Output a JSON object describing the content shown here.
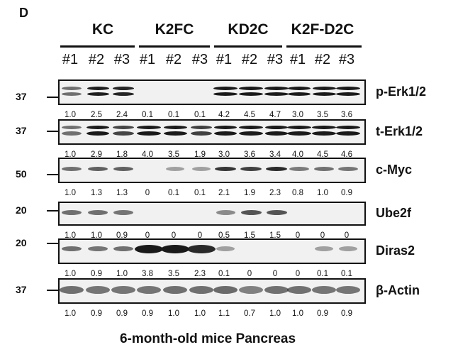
{
  "panel_label": "D",
  "groups": [
    {
      "name": "KC",
      "lanes": [
        "#1",
        "#2",
        "#3"
      ]
    },
    {
      "name": "K2FC",
      "lanes": [
        "#1",
        "#2",
        "#3"
      ]
    },
    {
      "name": "KD2C",
      "lanes": [
        "#1",
        "#2",
        "#3"
      ]
    },
    {
      "name": "K2F-D2C",
      "lanes": [
        "#1",
        "#2",
        "#3"
      ]
    }
  ],
  "blots": [
    {
      "protein": "p-Erk1/2",
      "marker": "37",
      "values": [
        "1.0",
        "2.5",
        "2.4",
        "0.1",
        "0.1",
        "0.1",
        "4.2",
        "4.5",
        "4.7",
        "3.0",
        "3.5",
        "3.6"
      ]
    },
    {
      "protein": "t-Erk1/2",
      "marker": "37",
      "values": [
        "1.0",
        "2.9",
        "1.8",
        "4.0",
        "3.5",
        "1.9",
        "3.0",
        "3.6",
        "3.4",
        "4.0",
        "4.5",
        "4.6"
      ]
    },
    {
      "protein": "c-Myc",
      "marker": "50",
      "values": [
        "1.0",
        "1.3",
        "1.3",
        "0",
        "0.1",
        "0.1",
        "2.1",
        "1.9",
        "2.3",
        "0.8",
        "1.0",
        "0.9"
      ]
    },
    {
      "protein": "Ube2f",
      "marker": "20",
      "values": [
        "1.0",
        "1.0",
        "0.9",
        "0",
        "0",
        "0",
        "0.5",
        "1.5",
        "1.5",
        "0",
        "0",
        "0"
      ]
    },
    {
      "protein": "Diras2",
      "marker": "20",
      "values": [
        "1.0",
        "0.9",
        "1.0",
        "3.8",
        "3.5",
        "2.3",
        "0.1",
        "0",
        "0",
        "0",
        "0.1",
        "0.1"
      ]
    },
    {
      "protein": "β-Actin",
      "marker": "37",
      "values": [
        "1.0",
        "0.9",
        "0.9",
        "0.9",
        "1.0",
        "1.0",
        "1.1",
        "0.7",
        "1.0",
        "1.0",
        "0.9",
        "0.9"
      ]
    }
  ],
  "caption": "6-month-old mice Pancreas"
}
